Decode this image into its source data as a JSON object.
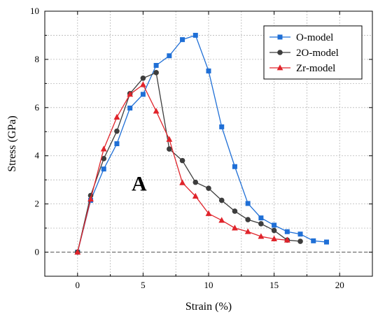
{
  "chart_data": {
    "type": "line",
    "xlabel": "Strain (%)",
    "ylabel": "Stress (GPa)",
    "xlim": [
      -2.5,
      22.5
    ],
    "ylim": [
      -1,
      10
    ],
    "xticks": [
      0,
      5,
      10,
      15,
      20
    ],
    "yticks": [
      0,
      2,
      4,
      6,
      8,
      10
    ],
    "grid": true,
    "legend_position": "top-right",
    "annotation": "A",
    "series": [
      {
        "name": "O-model",
        "color": "#1f6fd6",
        "marker": "square",
        "x": [
          0,
          1,
          2,
          3,
          4,
          5,
          6,
          7,
          8,
          9,
          10,
          11,
          12,
          13,
          14,
          15,
          16,
          17,
          18,
          19
        ],
        "y": [
          0,
          2.15,
          3.45,
          4.5,
          5.98,
          6.55,
          7.75,
          8.15,
          8.82,
          9.0,
          7.52,
          5.2,
          3.55,
          2.02,
          1.42,
          1.12,
          0.85,
          0.75,
          0.47,
          0.42
        ]
      },
      {
        "name": "2O-model",
        "color": "#3d3d3d",
        "marker": "circle",
        "x": [
          0,
          1,
          2,
          3,
          4,
          5,
          6,
          7,
          8,
          9,
          10,
          11,
          12,
          13,
          14,
          15,
          16,
          17
        ],
        "y": [
          0,
          2.35,
          3.88,
          5.02,
          6.58,
          7.22,
          7.45,
          4.28,
          3.8,
          2.9,
          2.65,
          2.15,
          1.7,
          1.35,
          1.18,
          0.9,
          0.5,
          0.45
        ]
      },
      {
        "name": "Zr-model",
        "color": "#e0242b",
        "marker": "triangle",
        "x": [
          0,
          1,
          2,
          3,
          4,
          5,
          6,
          7,
          8,
          9,
          10,
          11,
          12,
          13,
          14,
          15,
          16
        ],
        "y": [
          0,
          2.2,
          4.28,
          5.6,
          6.55,
          6.95,
          5.85,
          4.68,
          2.88,
          2.32,
          1.6,
          1.32,
          1.0,
          0.85,
          0.65,
          0.55,
          0.5
        ]
      }
    ]
  }
}
